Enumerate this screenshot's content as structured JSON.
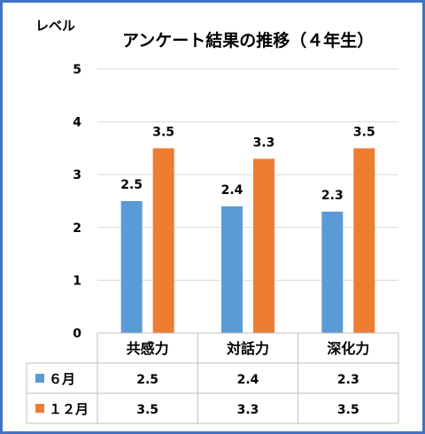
{
  "chart_data": {
    "type": "bar",
    "title": "アンケート結果の推移（４年生）",
    "ylabel": "レベル",
    "categories": [
      "共感力",
      "対話力",
      "深化力"
    ],
    "ylim": [
      0,
      5
    ],
    "yticks": [
      "0",
      "1",
      "2",
      "3",
      "4",
      "5"
    ],
    "grid": true,
    "legend": "data-table-below",
    "series": [
      {
        "name": "６月",
        "values": [
          2.5,
          2.4,
          2.3
        ],
        "labels": [
          "2.5",
          "2.4",
          "2.3"
        ],
        "color": "#5b9bd5"
      },
      {
        "name": "１２月",
        "values": [
          3.5,
          3.3,
          3.5
        ],
        "labels": [
          "3.5",
          "3.3",
          "3.5"
        ],
        "color": "#ed7d31"
      }
    ]
  },
  "colors": {
    "border": "#4472c4",
    "grid": "#d9d9d9",
    "table_line": "#bfbfbf"
  }
}
